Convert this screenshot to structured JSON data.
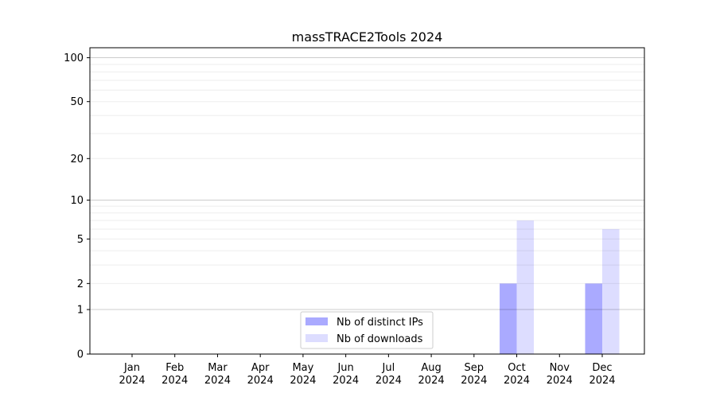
{
  "chart_data": {
    "type": "bar",
    "title": "massTRACE2Tools 2024",
    "xlabel": "",
    "ylabel": "",
    "categories": [
      "Jan\n2024",
      "Feb\n2024",
      "Mar\n2024",
      "Apr\n2024",
      "May\n2024",
      "Jun\n2024",
      "Jul\n2024",
      "Aug\n2024",
      "Sep\n2024",
      "Oct\n2024",
      "Nov\n2024",
      "Dec\n2024"
    ],
    "series": [
      {
        "name": "Nb of distinct IPs",
        "color": "#aaaaff",
        "values": [
          0,
          0,
          0,
          0,
          0,
          0,
          0,
          0,
          0,
          2,
          0,
          2
        ]
      },
      {
        "name": "Nb of downloads",
        "color": "#ddddff",
        "values": [
          0,
          0,
          0,
          0,
          0,
          0,
          0,
          0,
          0,
          7,
          0,
          6
        ]
      }
    ],
    "yscale": "symlog (log of 1+y)",
    "yticks": [
      0,
      1,
      2,
      5,
      10,
      20,
      50,
      100
    ],
    "ylim": [
      0,
      117
    ],
    "grid": true,
    "legend": "bottom-center"
  }
}
